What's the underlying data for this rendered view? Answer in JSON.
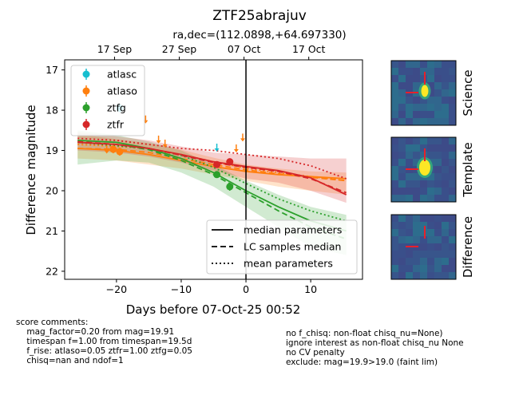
{
  "chart_data": {
    "type": "scatter",
    "title": "ZTF25abrajuv",
    "subtitle": "ra,dec=(112.0898,+64.697330)",
    "xlabel": "Days before 07-Oct-25 00:52",
    "ylabel": "Difference magnitude",
    "xlim": [
      -28,
      18
    ],
    "ylim": [
      22.2,
      16.75
    ],
    "y_inverted": true,
    "x_ticks": [
      -20,
      -10,
      0,
      10
    ],
    "y_ticks": [
      17,
      18,
      19,
      20,
      21,
      22
    ],
    "top_axis_ticks": [
      {
        "x": -20.3,
        "label": "17 Sep"
      },
      {
        "x": -10.3,
        "label": "27 Sep"
      },
      {
        "x": -0.3,
        "label": "07 Oct"
      },
      {
        "x": 9.7,
        "label": "17 Oct"
      }
    ],
    "reference_line_x": 0,
    "legend_markers": [
      "atlasc",
      "atlaso",
      "ztfg",
      "ztfr"
    ],
    "legend_lines": [
      "median parameters",
      "LC samples median",
      "mean parameters"
    ],
    "legend_markers_position": "upper-left",
    "legend_lines_position": "lower-right",
    "series": [
      {
        "name": "atlasc",
        "color": "#17becf",
        "points": [
          [
            -19.5,
            17.95,
            0.1
          ]
        ],
        "upper_limits": [
          [
            -4.5,
            18.95
          ]
        ]
      },
      {
        "name": "atlaso",
        "color": "#ff7f0e",
        "points": [
          [
            -20.5,
            18.97,
            0.1
          ],
          [
            -19.5,
            19.03,
            0.1
          ]
        ],
        "upper_limits": [
          [
            -21.5,
            19.0
          ],
          [
            -15.5,
            18.25
          ],
          [
            -13.5,
            18.75
          ],
          [
            -12.5,
            18.85
          ],
          [
            -1.5,
            18.97
          ],
          [
            -0.5,
            18.7
          ]
        ]
      },
      {
        "name": "ztfg",
        "color": "#2ca02c",
        "points": [
          [
            -4.5,
            19.6,
            0.08
          ],
          [
            -2.5,
            19.9,
            0.1
          ]
        ],
        "upper_limits": []
      },
      {
        "name": "ztfr",
        "color": "#d62728",
        "points": [
          [
            -4.5,
            19.35,
            0.06
          ],
          [
            -2.5,
            19.28,
            0.06
          ]
        ],
        "upper_limits": []
      }
    ],
    "model_curves": [
      {
        "band": "atlaso",
        "color": "#ff7f0e",
        "median": {
          "x": [
            -26,
            -20,
            -15,
            -10,
            -5,
            0,
            5,
            10,
            15.5
          ],
          "y": [
            18.95,
            19.0,
            19.1,
            19.25,
            19.4,
            19.52,
            19.6,
            19.65,
            19.7
          ]
        },
        "samples": {
          "x": [
            -26,
            -20,
            -15,
            -10,
            -5,
            0,
            5,
            10,
            15.5
          ],
          "y": [
            18.95,
            18.97,
            19.05,
            19.2,
            19.35,
            19.48,
            19.58,
            19.67,
            19.75
          ]
        },
        "mean": {
          "x": [
            -26,
            -20,
            -15,
            -10,
            -5,
            0,
            5,
            10,
            15.5
          ],
          "y": [
            18.85,
            18.9,
            18.95,
            19.1,
            19.28,
            19.44,
            19.55,
            19.65,
            19.75
          ]
        },
        "band_upper": [
          18.6,
          18.72,
          18.82,
          18.98,
          19.18,
          19.35,
          19.45,
          19.52,
          19.55
        ],
        "band_lower": [
          19.2,
          19.25,
          19.35,
          19.45,
          19.6,
          19.75,
          19.9,
          20.0,
          20.1
        ]
      },
      {
        "band": "ztfg",
        "color": "#2ca02c",
        "median": {
          "x": [
            -26,
            -20,
            -15,
            -10,
            -5,
            0,
            5,
            10,
            15.5
          ],
          "y": [
            18.75,
            18.8,
            18.95,
            19.2,
            19.55,
            20.0,
            20.4,
            20.75,
            21.0
          ]
        },
        "samples": {
          "x": [
            -26,
            -20,
            -15,
            -10,
            -5,
            0,
            5,
            10,
            15.5
          ],
          "y": [
            18.8,
            18.85,
            18.98,
            19.25,
            19.6,
            20.05,
            20.5,
            20.9,
            21.2
          ]
        },
        "mean": {
          "x": [
            -26,
            -20,
            -15,
            -10,
            -5,
            0,
            5,
            10,
            15.5
          ],
          "y": [
            18.8,
            18.88,
            18.95,
            19.12,
            19.42,
            19.82,
            20.2,
            20.5,
            20.75
          ]
        },
        "band_upper": [
          18.5,
          18.62,
          18.78,
          19.0,
          19.35,
          19.75,
          20.1,
          20.4,
          20.6
        ],
        "band_lower": [
          19.35,
          19.25,
          19.3,
          19.55,
          19.9,
          20.4,
          20.9,
          21.4,
          21.6
        ]
      },
      {
        "band": "ztfr",
        "color": "#d62728",
        "median": {
          "x": [
            -26,
            -20,
            -15,
            -10,
            -5,
            0,
            5,
            10,
            15.5
          ],
          "y": [
            18.8,
            18.85,
            18.95,
            19.1,
            19.28,
            19.4,
            19.5,
            19.68,
            20.1
          ]
        },
        "samples": {
          "x": [
            -26,
            -20,
            -15,
            -10,
            -5,
            0,
            5,
            10,
            15.5
          ],
          "y": [
            18.78,
            18.85,
            18.95,
            19.12,
            19.3,
            19.42,
            19.52,
            19.7,
            20.05
          ]
        },
        "mean": {
          "x": [
            -26,
            -20,
            -15,
            -10,
            -5,
            0,
            5,
            10,
            15.5
          ],
          "y": [
            18.7,
            18.75,
            18.85,
            18.95,
            19.0,
            19.1,
            19.2,
            19.38,
            19.7
          ]
        },
        "band_upper": [
          18.55,
          18.65,
          18.75,
          18.9,
          19.05,
          19.1,
          19.15,
          19.2,
          19.2
        ],
        "band_lower": [
          19.0,
          19.05,
          19.15,
          19.3,
          19.5,
          19.7,
          19.8,
          20.0,
          20.3
        ]
      }
    ],
    "image_labels": [
      "Science",
      "Template",
      "Difference"
    ]
  },
  "comments": {
    "left": [
      "score comments:",
      "    mag_factor=0.20 from mag=19.91",
      "    timespan f=1.00 from timespan=19.5d",
      "    f_rise: atlaso=0.05 ztfr=1.00 ztfg=0.05",
      "    chisq=nan and ndof=1"
    ],
    "right": [
      "no f_chisq: non-float chisq_nu=None)",
      "ignore interest as non-float chisq_nu None",
      "no CV penalty",
      "exclude: mag=19.9>19.0 (faint lim)"
    ]
  }
}
